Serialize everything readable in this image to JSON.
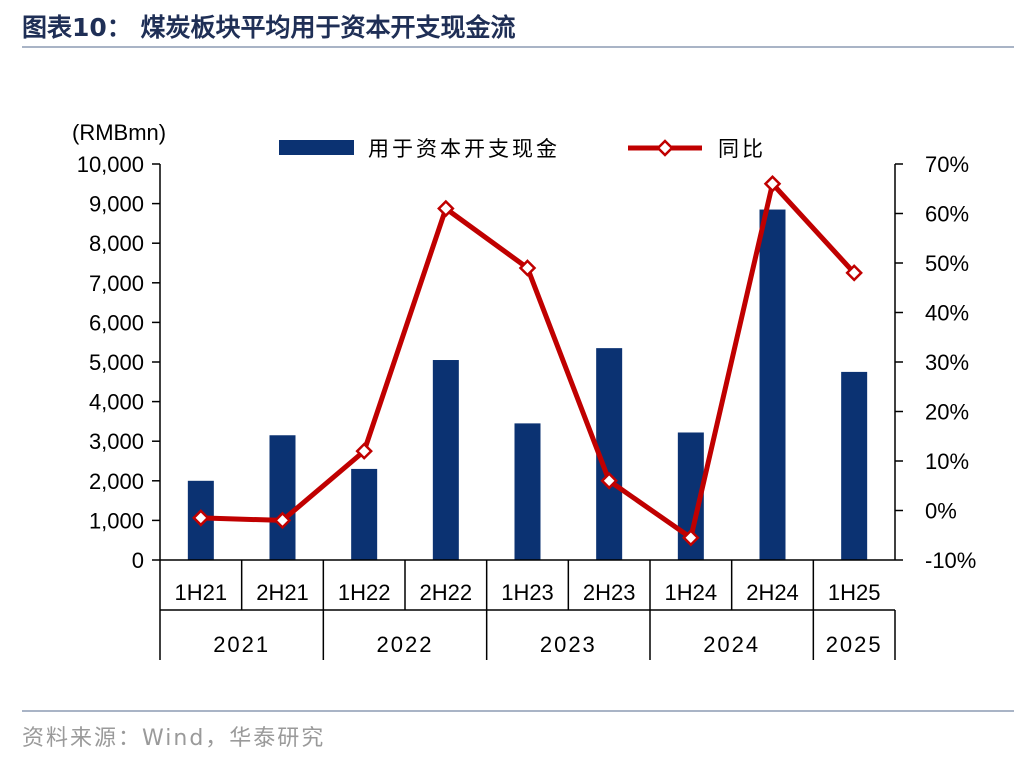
{
  "figure_title": "图表10：  煤炭板块平均用于资本开支现金流",
  "source_note": "资料来源：Wind，华泰研究",
  "chart_data": {
    "type": "bar",
    "unit_label": "(RMBmn)",
    "categories": [
      "1H21",
      "2H21",
      "1H22",
      "2H22",
      "1H23",
      "2H23",
      "1H24",
      "2H24",
      "1H25"
    ],
    "groups": [
      {
        "label": "2021",
        "count": 2
      },
      {
        "label": "2022",
        "count": 2
      },
      {
        "label": "2023",
        "count": 2
      },
      {
        "label": "2024",
        "count": 2
      },
      {
        "label": "2025",
        "count": 1
      }
    ],
    "series": [
      {
        "name": "用于资本开支现金",
        "type": "bar",
        "axis": "left",
        "color": "#0b3272",
        "values": [
          2000,
          3150,
          2300,
          5050,
          3450,
          5350,
          3220,
          8850,
          4750
        ]
      },
      {
        "name": "同比",
        "type": "line",
        "axis": "right",
        "color": "#c00000",
        "values": [
          -1.5,
          -2,
          12,
          61,
          49,
          6,
          -5.5,
          66,
          48
        ]
      }
    ],
    "left_axis": {
      "min": 0,
      "max": 10000,
      "step": 1000,
      "tick_labels": [
        "0",
        "1,000",
        "2,000",
        "3,000",
        "4,000",
        "5,000",
        "6,000",
        "7,000",
        "8,000",
        "9,000",
        "10,000"
      ]
    },
    "right_axis": {
      "min": -10,
      "max": 70,
      "step": 10,
      "tick_labels": [
        "-10%",
        "0%",
        "10%",
        "20%",
        "30%",
        "40%",
        "50%",
        "60%",
        "70%"
      ]
    },
    "legend_position": "top",
    "grid": false
  }
}
